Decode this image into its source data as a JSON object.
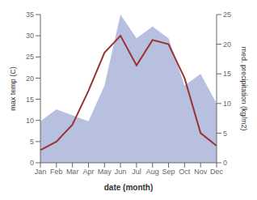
{
  "chart_data": {
    "type": "line",
    "categories": [
      "Jan",
      "Feb",
      "Mar",
      "Apr",
      "May",
      "Jun",
      "Jul",
      "Aug",
      "Sep",
      "Oct",
      "Nov",
      "Dec"
    ],
    "series": [
      {
        "type": "area",
        "color": "#b8c0e0",
        "axis": "y2",
        "values": [
          7,
          9,
          8,
          7,
          13,
          25,
          21,
          23,
          21,
          13,
          15,
          10
        ]
      },
      {
        "type": "line",
        "color": "#993333",
        "values": [
          3,
          5,
          9,
          17,
          26,
          30,
          23,
          29,
          28,
          20,
          7,
          4
        ]
      }
    ],
    "xlabel": "date (month)",
    "ylabel": "max temp (C)",
    "y2label": "med. precipitation (kg/m2)",
    "ylim": [
      0,
      35
    ],
    "yticks": [
      0,
      5,
      10,
      15,
      20,
      25,
      30,
      35
    ],
    "y2lim": [
      0,
      25
    ],
    "y2ticks": [
      0,
      5,
      10,
      15,
      20,
      25
    ],
    "grid": false
  }
}
